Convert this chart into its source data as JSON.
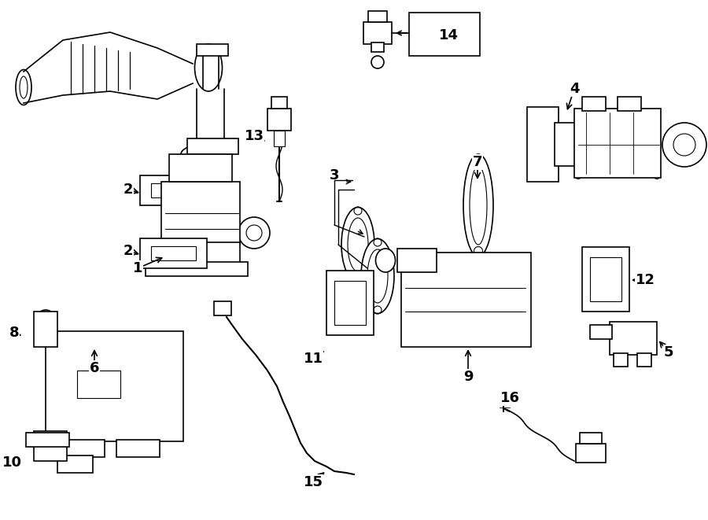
{
  "bg": "#ffffff",
  "lc": "#000000",
  "lw": 1.2,
  "fig_w": 9.0,
  "fig_h": 6.61,
  "dpi": 100
}
